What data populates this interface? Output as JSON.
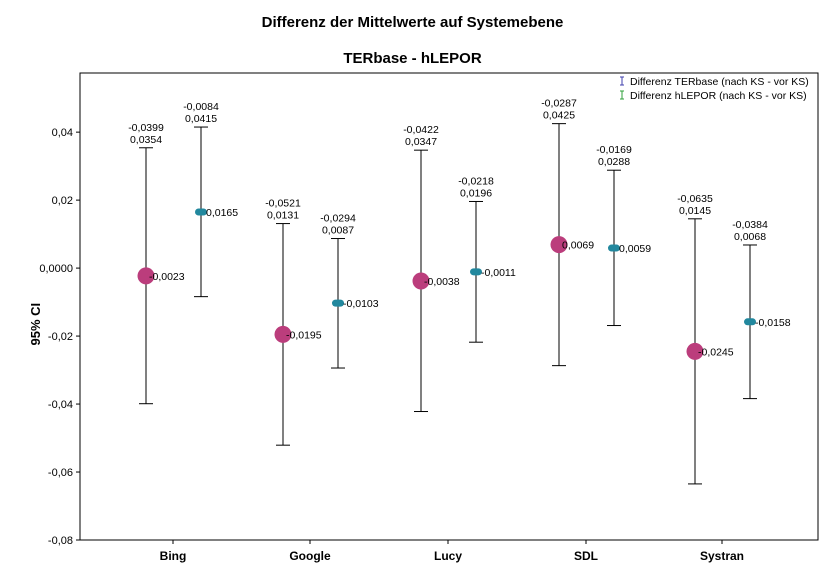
{
  "chart_data": {
    "type": "errorbar",
    "title": "Differenz der Mittelwerte auf Systemebene",
    "subtitle": "TERbase - hLEPOR",
    "ylabel": "95% CI",
    "xlabel": "",
    "ylim": [
      -0.08,
      0.0574
    ],
    "yticks": [
      0.04,
      0.02,
      0.0,
      -0.02,
      -0.04,
      -0.06,
      -0.08
    ],
    "ytick_labels": [
      "0,04",
      "0,02",
      "0,0000",
      "-0,02",
      "-0,04",
      "-0,06",
      "-0,08"
    ],
    "categories": [
      "Bing",
      "Google",
      "Lucy",
      "SDL",
      "Systran"
    ],
    "legend_position": "top-right",
    "series": [
      {
        "name": "Differenz TERbase (nach KS - vor KS)",
        "color": "#bb3d7c",
        "legend_color": "#3f3fae",
        "marker": "circle",
        "points": [
          {
            "category": "Bing",
            "mean": -0.0023,
            "lower": -0.0399,
            "upper": 0.0354,
            "mean_label": "-0,0023",
            "lower_label": "-0,0399",
            "upper_label": "0,0354"
          },
          {
            "category": "Google",
            "mean": -0.0195,
            "lower": -0.0521,
            "upper": 0.0131,
            "mean_label": "-0,0195",
            "lower_label": "-0,0521",
            "upper_label": "0,0131"
          },
          {
            "category": "Lucy",
            "mean": -0.0038,
            "lower": -0.0422,
            "upper": 0.0347,
            "mean_label": "-0,0038",
            "lower_label": "-0,0422",
            "upper_label": "0,0347"
          },
          {
            "category": "SDL",
            "mean": 0.0069,
            "lower": -0.0287,
            "upper": 0.0425,
            "mean_label": "0,0069",
            "lower_label": "-0,0287",
            "upper_label": "0,0425"
          },
          {
            "category": "Systran",
            "mean": -0.0245,
            "lower": -0.0635,
            "upper": 0.0145,
            "mean_label": "-0,0245",
            "lower_label": "-0,0635",
            "upper_label": "0,0145"
          }
        ]
      },
      {
        "name": "Differenz hLEPOR (nach KS - vor KS)",
        "color": "#22889e",
        "legend_color": "#2e9f38",
        "marker": "dash",
        "points": [
          {
            "category": "Bing",
            "mean": 0.0165,
            "lower": -0.0084,
            "upper": 0.0415,
            "mean_label": "0,0165",
            "lower_label": "-0,0084",
            "upper_label": "0,0415"
          },
          {
            "category": "Google",
            "mean": -0.0103,
            "lower": -0.0294,
            "upper": 0.0087,
            "mean_label": "-0,0103",
            "lower_label": "-0,0294",
            "upper_label": "0,0087"
          },
          {
            "category": "Lucy",
            "mean": -0.0011,
            "lower": -0.0218,
            "upper": 0.0196,
            "mean_label": "-0,0011",
            "lower_label": "-0,0218",
            "upper_label": "0,0196"
          },
          {
            "category": "SDL",
            "mean": 0.0059,
            "lower": -0.0169,
            "upper": 0.0288,
            "mean_label": "0,0059",
            "lower_label": "-0,0169",
            "upper_label": "0,0288"
          },
          {
            "category": "Systran",
            "mean": -0.0158,
            "lower": -0.0384,
            "upper": 0.0068,
            "mean_label": "-0,0158",
            "lower_label": "-0,0384",
            "upper_label": "0,0068"
          }
        ]
      }
    ]
  }
}
